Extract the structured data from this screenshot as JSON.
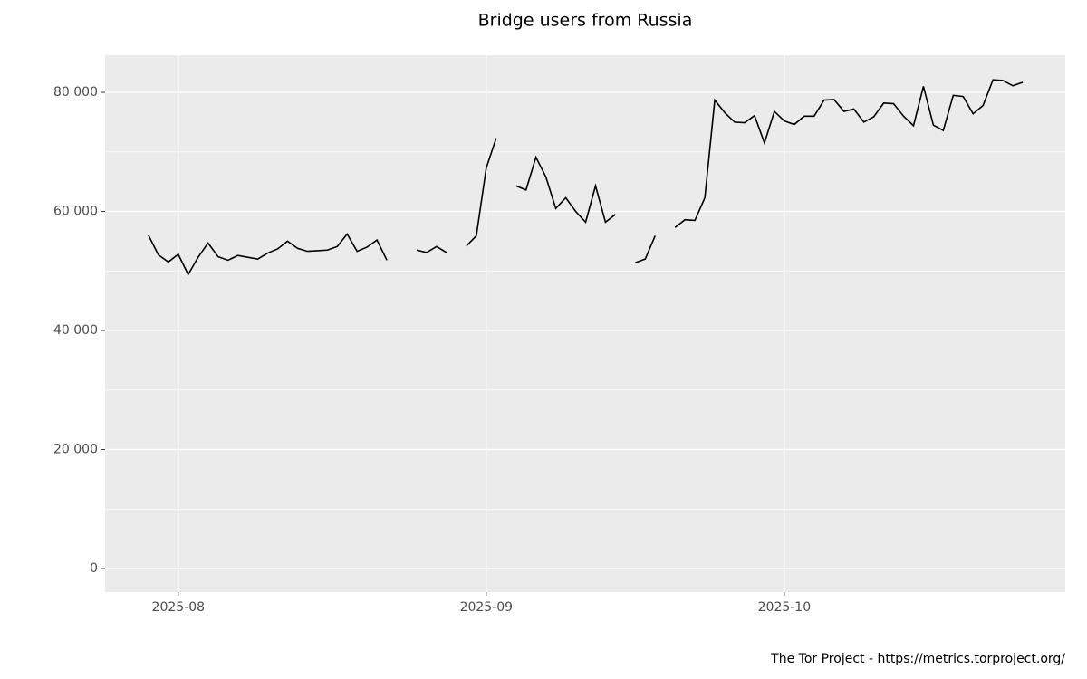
{
  "chart_data": {
    "type": "line",
    "title": "Bridge users from Russia",
    "caption": "The Tor Project - https://metrics.torproject.org/",
    "x": [
      "2025-07-29",
      "2025-07-30",
      "2025-07-31",
      "2025-08-01",
      "2025-08-02",
      "2025-08-03",
      "2025-08-04",
      "2025-08-05",
      "2025-08-06",
      "2025-08-07",
      "2025-08-08",
      "2025-08-09",
      "2025-08-10",
      "2025-08-11",
      "2025-08-12",
      "2025-08-13",
      "2025-08-14",
      "2025-08-15",
      "2025-08-16",
      "2025-08-17",
      "2025-08-18",
      "2025-08-19",
      "2025-08-20",
      "2025-08-21",
      "2025-08-22",
      "2025-08-23",
      "2025-08-24",
      "2025-08-25",
      "2025-08-26",
      "2025-08-27",
      "2025-08-28",
      "2025-08-29",
      "2025-08-30",
      "2025-08-31",
      "2025-09-01",
      "2025-09-02",
      "2025-09-03",
      "2025-09-04",
      "2025-09-05",
      "2025-09-06",
      "2025-09-07",
      "2025-09-08",
      "2025-09-09",
      "2025-09-10",
      "2025-09-11",
      "2025-09-12",
      "2025-09-13",
      "2025-09-14",
      "2025-09-15",
      "2025-09-16",
      "2025-09-17",
      "2025-09-18",
      "2025-09-19",
      "2025-09-20",
      "2025-09-21",
      "2025-09-22",
      "2025-09-23",
      "2025-09-24",
      "2025-09-25",
      "2025-09-26",
      "2025-09-27",
      "2025-09-28",
      "2025-09-29",
      "2025-09-30",
      "2025-10-01",
      "2025-10-02",
      "2025-10-03",
      "2025-10-04",
      "2025-10-05",
      "2025-10-06",
      "2025-10-07",
      "2025-10-08",
      "2025-10-09",
      "2025-10-10",
      "2025-10-11",
      "2025-10-12",
      "2025-10-13",
      "2025-10-14",
      "2025-10-15",
      "2025-10-16",
      "2025-10-17",
      "2025-10-18",
      "2025-10-19",
      "2025-10-20",
      "2025-10-21",
      "2025-10-22",
      "2025-10-23",
      "2025-10-24",
      "2025-10-25"
    ],
    "series": [
      {
        "name": "Bridge users",
        "color": "#000000",
        "values": [
          56000,
          52700,
          51500,
          52800,
          49400,
          52300,
          54700,
          52400,
          51800,
          52600,
          52300,
          52000,
          53000,
          53700,
          55000,
          53800,
          53300,
          53400,
          53500,
          54100,
          56200,
          53300,
          54000,
          55200,
          51800,
          null,
          null,
          53500,
          53100,
          54100,
          53100,
          null,
          54200,
          55900,
          67300,
          72300,
          null,
          64300,
          63600,
          69100,
          65800,
          60500,
          62300,
          60000,
          58200,
          64300,
          58200,
          59500,
          null,
          51400,
          52000,
          55900,
          null,
          57300,
          58600,
          58500,
          62300,
          78700,
          76600,
          75000,
          74900,
          76100,
          71500,
          76800,
          75200,
          74600,
          76000,
          76000,
          78700,
          78800,
          76800,
          77200,
          75000,
          75900,
          78200,
          78100,
          76000,
          74400,
          81000,
          74500,
          73600,
          79500,
          79300,
          76400,
          77800,
          82100,
          82000,
          81100,
          81700
        ]
      }
    ],
    "xlim": [
      "2025-07-25",
      "2025-10-29"
    ],
    "xticks": [
      {
        "value": "2025-08-01",
        "label": "2025-08"
      },
      {
        "value": "2025-09-01",
        "label": "2025-09"
      },
      {
        "value": "2025-10-01",
        "label": "2025-10"
      }
    ],
    "ylim": [
      -3950,
      86240
    ],
    "yticks": [
      0,
      {
        "value": 20000,
        "label": "20 000"
      },
      {
        "value": 40000,
        "label": "40 000"
      },
      {
        "value": 60000,
        "label": "60 000"
      },
      {
        "value": 80000,
        "label": "80 000"
      }
    ],
    "y_minor_ticks": [
      10000,
      30000,
      50000,
      70000
    ],
    "grid": true
  }
}
